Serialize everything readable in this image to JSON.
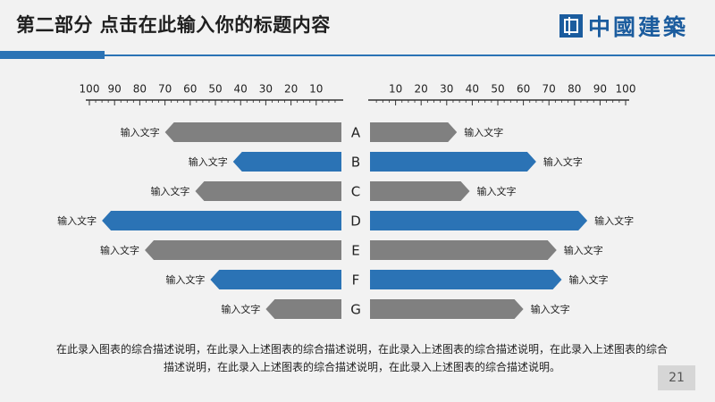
{
  "header": {
    "title": "第二部分  点击在此输入你的标题内容",
    "logo_text": "中國建築",
    "logo_icon": "building-logo-icon"
  },
  "colors": {
    "blue": "#2b73b5",
    "gray": "#808080",
    "axis": "#333333"
  },
  "chart_data": {
    "type": "bar",
    "orientation": "horizontal-diverging",
    "categories": [
      "A",
      "B",
      "C",
      "D",
      "E",
      "F",
      "G"
    ],
    "axis_left_ticks": [
      "100",
      "90",
      "80",
      "70",
      "60",
      "50",
      "40",
      "30",
      "20",
      "10"
    ],
    "axis_right_ticks": [
      "10",
      "20",
      "30",
      "40",
      "50",
      "60",
      "70",
      "80",
      "90",
      "100"
    ],
    "xlim": [
      0,
      100
    ],
    "series": [
      {
        "side": "left",
        "values": [
          70,
          43,
          58,
          95,
          78,
          52,
          30
        ],
        "labels": [
          "输入文字",
          "输入文字",
          "输入文字",
          "输入文字",
          "输入文字",
          "输入文字",
          "输入文字"
        ],
        "colors": [
          "#808080",
          "#2b73b5",
          "#808080",
          "#2b73b5",
          "#808080",
          "#2b73b5",
          "#808080"
        ]
      },
      {
        "side": "right",
        "values": [
          34,
          65,
          39,
          85,
          73,
          75,
          60
        ],
        "labels": [
          "输入文字",
          "输入文字",
          "输入文字",
          "输入文字",
          "输入文字",
          "输入文字",
          "输入文字"
        ],
        "colors": [
          "#808080",
          "#2b73b5",
          "#808080",
          "#2b73b5",
          "#808080",
          "#2b73b5",
          "#808080"
        ]
      }
    ]
  },
  "description": "在此录入图表的综合描述说明，在此录入上述图表的综合描述说明，在此录入上述图表的综合描述说明，在此录入上述图表的综合描述说明，在此录入上述图表的综合描述说明，在此录入上述图表的综合描述说明。",
  "page_number": "21"
}
